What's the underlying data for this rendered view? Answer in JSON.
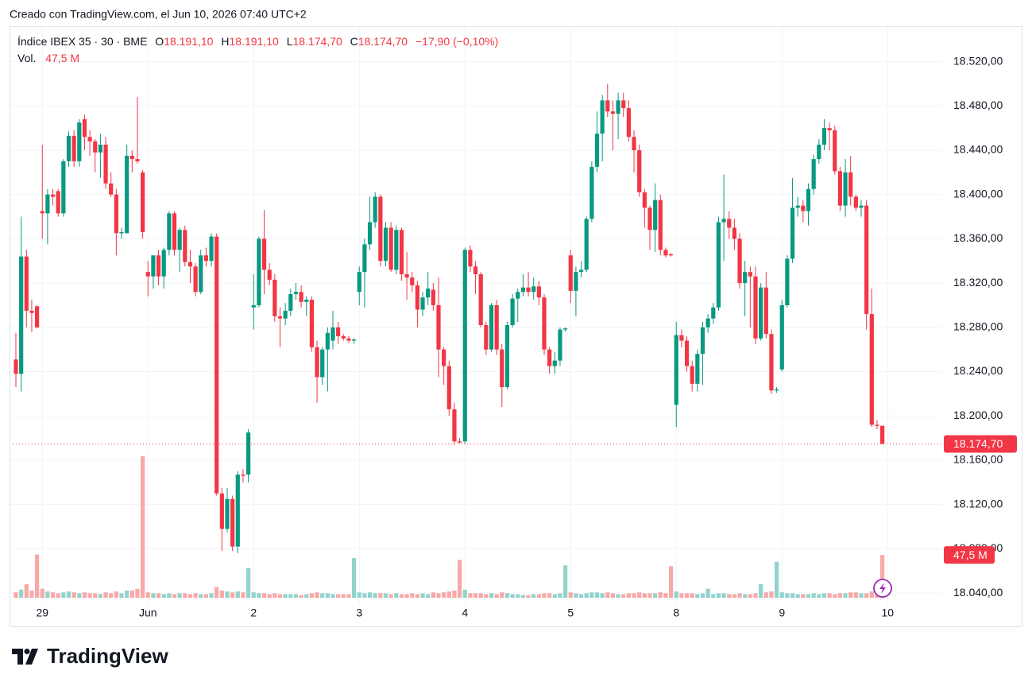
{
  "attribution": "Creado con TradingView.com, el Jun 10, 2026 07:40 UTC+2",
  "brand": "TradingView",
  "chart_data": {
    "type": "candlestick",
    "title": "Índice IBEX 35 · 30 · BME",
    "ohlc_legend": [
      {
        "key": "O",
        "text": "18.191,10"
      },
      {
        "key": "H",
        "text": "18.191,10"
      },
      {
        "key": "L",
        "text": "18.174,70"
      },
      {
        "key": "C",
        "text": "18.174,70"
      }
    ],
    "change_label": "−17,90 (−0,10%)",
    "last_price_label": "18.174,70",
    "up_color": "#089981",
    "down_color": "#f23645",
    "grid": true,
    "ylim": [
      18030,
      18552
    ],
    "yticks": [
      {
        "value": 18040,
        "label": "18.040,00"
      },
      {
        "value": 18080,
        "label": "18.080,00"
      },
      {
        "value": 18120,
        "label": "18.120,00"
      },
      {
        "value": 18160,
        "label": "18.160,00"
      },
      {
        "value": 18200,
        "label": "18.200,00"
      },
      {
        "value": 18240,
        "label": "18.240,00"
      },
      {
        "value": 18280,
        "label": "18.280,00"
      },
      {
        "value": 18320,
        "label": "18.320,00"
      },
      {
        "value": 18360,
        "label": "18.360,00"
      },
      {
        "value": 18400,
        "label": "18.400,00"
      },
      {
        "value": 18440,
        "label": "18.440,00"
      },
      {
        "value": 18480,
        "label": "18.480,00"
      },
      {
        "value": 18520,
        "label": "18.520,00"
      }
    ],
    "categories": [
      null,
      null,
      null,
      null,
      null,
      "29",
      null,
      null,
      null,
      null,
      null,
      null,
      null,
      null,
      null,
      null,
      null,
      null,
      null,
      null,
      null,
      null,
      null,
      null,
      null,
      "Jun",
      null,
      null,
      null,
      null,
      null,
      null,
      null,
      null,
      null,
      null,
      null,
      null,
      null,
      null,
      null,
      null,
      null,
      null,
      null,
      "2",
      null,
      null,
      null,
      null,
      null,
      null,
      null,
      null,
      null,
      null,
      null,
      null,
      null,
      null,
      null,
      null,
      null,
      null,
      null,
      "3",
      null,
      null,
      null,
      null,
      null,
      null,
      null,
      null,
      null,
      null,
      null,
      null,
      null,
      null,
      null,
      null,
      null,
      null,
      null,
      "4",
      null,
      null,
      null,
      null,
      null,
      null,
      null,
      null,
      null,
      null,
      null,
      null,
      null,
      null,
      null,
      null,
      null,
      null,
      null,
      "5",
      null,
      null,
      null,
      null,
      null,
      null,
      null,
      null,
      null,
      null,
      null,
      null,
      null,
      null,
      null,
      null,
      null,
      null,
      null,
      "8",
      null,
      null,
      null,
      null,
      null,
      null,
      null,
      null,
      null,
      null,
      null,
      null,
      null,
      null,
      null,
      null,
      null,
      null,
      null,
      "9",
      null,
      null,
      null,
      null,
      null,
      null,
      null,
      null,
      null,
      null,
      null,
      null,
      null,
      null,
      null,
      null,
      null,
      null,
      null,
      "10"
    ],
    "open": [
      18251,
      18238,
      18344,
      18295,
      18299,
      18385,
      18383,
      18400,
      18403,
      18383,
      18430,
      18453,
      18430,
      18468,
      18452,
      18448,
      18438,
      18445,
      18410,
      18400,
      18365,
      18365,
      18435,
      18432,
      18420,
      18330,
      18326,
      18345,
      18326,
      18350,
      18383,
      18350,
      18368,
      18339,
      18335,
      18312,
      18345,
      18340,
      18362,
      18130,
      18098,
      18125,
      18082,
      18147,
      18147,
      18298,
      18300,
      18360,
      18332,
      18323,
      18290,
      18288,
      18295,
      18310,
      18312,
      18303,
      18305,
      18262,
      18235,
      18260,
      18268,
      18280,
      18272,
      18270,
      18268,
      18312,
      18330,
      18355,
      18375,
      18398,
      18340,
      18370,
      18332,
      18368,
      18328,
      18325,
      18318,
      18296,
      18307,
      18314,
      18300,
      18260,
      18245,
      18206,
      18177,
      18177,
      18350,
      18335,
      18328,
      18282,
      18260,
      18300,
      18260,
      18226,
      18282,
      18306,
      18312,
      18316,
      18312,
      18317,
      18307,
      18260,
      18245,
      18250,
      18278,
      18345,
      18313,
      18330,
      18332,
      18378,
      18425,
      18455,
      18485,
      18475,
      18473,
      18485,
      18478,
      18452,
      18440,
      18402,
      18388,
      18368,
      18395,
      18350,
      18346,
      18210,
      18273,
      18268,
      18245,
      18229,
      18256,
      18280,
      18288,
      18298,
      18375,
      18378,
      18370,
      18360,
      18320,
      18330,
      18326,
      18270,
      18316,
      18274,
      18223,
      18242,
      18300,
      18342,
      18388,
      18390,
      18385,
      18405,
      18432,
      18445,
      18460,
      18458,
      18421,
      18390,
      18420,
      18398,
      18388,
      18390,
      18292,
      18192,
      18191.1,
      null
    ],
    "high": [
      18275,
      18380,
      18350,
      18305,
      18300,
      18445,
      18405,
      18405,
      18405,
      18432,
      18457,
      18458,
      18468,
      18472,
      18458,
      18450,
      18455,
      18452,
      18420,
      18405,
      18370,
      18445,
      18440,
      18488,
      18422,
      18340,
      18345,
      18350,
      18352,
      18385,
      18385,
      18370,
      18372,
      18350,
      18338,
      18350,
      18352,
      18365,
      18365,
      18135,
      18135,
      18128,
      18150,
      18152,
      18188,
      18328,
      18362,
      18386,
      18338,
      18328,
      18298,
      18302,
      18315,
      18320,
      18318,
      18308,
      18308,
      18268,
      18262,
      18280,
      18295,
      18285,
      18274,
      18272,
      18270,
      18335,
      18360,
      18398,
      18402,
      18400,
      18375,
      18375,
      18372,
      18370,
      18348,
      18330,
      18322,
      18312,
      18330,
      18320,
      18325,
      18262,
      18250,
      18212,
      18180,
      18352,
      18354,
      18340,
      18330,
      18285,
      18302,
      18305,
      18265,
      18285,
      18310,
      18315,
      18328,
      18330,
      18325,
      18322,
      18310,
      18262,
      18258,
      18280,
      18280,
      18350,
      18335,
      18340,
      18380,
      18430,
      18475,
      18490,
      18500,
      18485,
      18492,
      18492,
      18485,
      18458,
      18445,
      18405,
      18390,
      18410,
      18400,
      18352,
      18347,
      18285,
      18278,
      18272,
      18250,
      18260,
      18285,
      18292,
      18302,
      18380,
      18418,
      18385,
      18378,
      18365,
      18340,
      18335,
      18335,
      18320,
      18330,
      18278,
      18226,
      18305,
      18345,
      18415,
      18398,
      18395,
      18410,
      18436,
      18450,
      18468,
      18465,
      18462,
      18425,
      18432,
      18435,
      18400,
      18395,
      18395,
      18315,
      18196,
      18191.1,
      null
    ],
    "low": [
      18226,
      18222,
      18280,
      18276,
      18279,
      18360,
      18355,
      18390,
      18380,
      18380,
      18425,
      18425,
      18425,
      18440,
      18435,
      18420,
      18415,
      18405,
      18398,
      18345,
      18360,
      18365,
      18420,
      18428,
      18360,
      18308,
      18315,
      18318,
      18315,
      18345,
      18345,
      18330,
      18335,
      18320,
      18308,
      18310,
      18335,
      18335,
      18128,
      18078,
      18095,
      18078,
      18076,
      18140,
      18140,
      18278,
      18298,
      18310,
      18318,
      18285,
      18262,
      18282,
      18290,
      18305,
      18298,
      18290,
      18258,
      18212,
      18228,
      18222,
      18260,
      18265,
      18268,
      18266,
      18265,
      18300,
      18298,
      18350,
      18370,
      18335,
      18335,
      18330,
      18328,
      18322,
      18305,
      18312,
      18280,
      18290,
      18300,
      18295,
      18235,
      18228,
      18200,
      18174,
      18175,
      18175,
      18330,
      18310,
      18280,
      18255,
      18258,
      18255,
      18208,
      18224,
      18280,
      18285,
      18308,
      18308,
      18305,
      18300,
      18255,
      18238,
      18238,
      18245,
      18276,
      18302,
      18290,
      18325,
      18330,
      18375,
      18420,
      18430,
      18470,
      18440,
      18450,
      18470,
      18448,
      18420,
      18398,
      18370,
      18350,
      18348,
      18345,
      18343,
      18344,
      18190,
      18262,
      18240,
      18222,
      18222,
      18228,
      18275,
      18283,
      18295,
      18340,
      18360,
      18350,
      18315,
      18290,
      18280,
      18265,
      18268,
      18270,
      18220,
      18221,
      18240,
      18298,
      18338,
      18380,
      18375,
      18372,
      18400,
      18428,
      18440,
      18440,
      18418,
      18385,
      18380,
      18390,
      18385,
      18380,
      18278,
      18190,
      18188,
      18174.7,
      null
    ],
    "close": [
      18238,
      18344,
      18295,
      18293,
      18280,
      18383,
      18400,
      18398,
      18383,
      18430,
      18453,
      18430,
      18465,
      18452,
      18448,
      18438,
      18445,
      18410,
      18400,
      18365,
      18366,
      18435,
      18432,
      18430,
      18366,
      18326,
      18345,
      18326,
      18350,
      18383,
      18350,
      18368,
      18339,
      18335,
      18312,
      18345,
      18340,
      18362,
      18130,
      18098,
      18125,
      18082,
      18147,
      18146,
      18185,
      18300,
      18360,
      18332,
      18323,
      18290,
      18288,
      18295,
      18310,
      18312,
      18303,
      18305,
      18262,
      18235,
      18260,
      18275,
      18280,
      18272,
      18270,
      18268,
      18269,
      18330,
      18355,
      18375,
      18398,
      18340,
      18370,
      18332,
      18368,
      18328,
      18325,
      18318,
      18296,
      18307,
      18315,
      18300,
      18260,
      18245,
      18206,
      18177,
      18176,
      18350,
      18335,
      18328,
      18282,
      18260,
      18300,
      18260,
      18226,
      18282,
      18306,
      18312,
      18316,
      18312,
      18317,
      18307,
      18260,
      18245,
      18250,
      18278,
      18279,
      18313,
      18330,
      18332,
      18378,
      18425,
      18455,
      18485,
      18475,
      18473,
      18485,
      18478,
      18452,
      18440,
      18402,
      18388,
      18368,
      18395,
      18350,
      18345,
      18345,
      18273,
      18268,
      18245,
      18229,
      18256,
      18280,
      18288,
      18298,
      18375,
      18378,
      18370,
      18360,
      18320,
      18330,
      18326,
      18270,
      18316,
      18274,
      18223,
      18224,
      18300,
      18342,
      18388,
      18390,
      18385,
      18405,
      18432,
      18445,
      18460,
      18458,
      18421,
      18390,
      18420,
      18398,
      18388,
      18390,
      18292,
      18192,
      18191,
      18174.7,
      null
    ],
    "volume": {
      "name": "Vol.",
      "last_value_label": "47,5 M",
      "up_color": "#92d3cc",
      "down_color": "#f7a9a7",
      "values": [
        6,
        9,
        15,
        8,
        48,
        10,
        7,
        6,
        5,
        6,
        7,
        6,
        5,
        6,
        5,
        5,
        4,
        6,
        5,
        7,
        5,
        8,
        8,
        10,
        157,
        6,
        5,
        5,
        4,
        5,
        4,
        5,
        5,
        4,
        5,
        4,
        4,
        5,
        12,
        8,
        7,
        6,
        7,
        6,
        33,
        6,
        5,
        5,
        4,
        5,
        4,
        4,
        4,
        4,
        3,
        4,
        5,
        6,
        5,
        5,
        4,
        4,
        4,
        4,
        44,
        6,
        5,
        6,
        5,
        5,
        5,
        4,
        5,
        4,
        4,
        5,
        4,
        5,
        4,
        6,
        5,
        6,
        7,
        8,
        42,
        9,
        5,
        5,
        5,
        4,
        5,
        4,
        6,
        5,
        4,
        4,
        3,
        3,
        4,
        4,
        5,
        5,
        4,
        5,
        36,
        6,
        5,
        4,
        5,
        6,
        6,
        5,
        6,
        5,
        4,
        4,
        5,
        5,
        6,
        5,
        5,
        5,
        6,
        5,
        35,
        7,
        5,
        5,
        5,
        4,
        5,
        10,
        4,
        5,
        5,
        4,
        4,
        5,
        4,
        4,
        5,
        15,
        6,
        7,
        40,
        6,
        5,
        5,
        4,
        4,
        4,
        5,
        4,
        5,
        5,
        4,
        5,
        5,
        6,
        6,
        5,
        5,
        7,
        6,
        47.5,
        null
      ]
    }
  }
}
